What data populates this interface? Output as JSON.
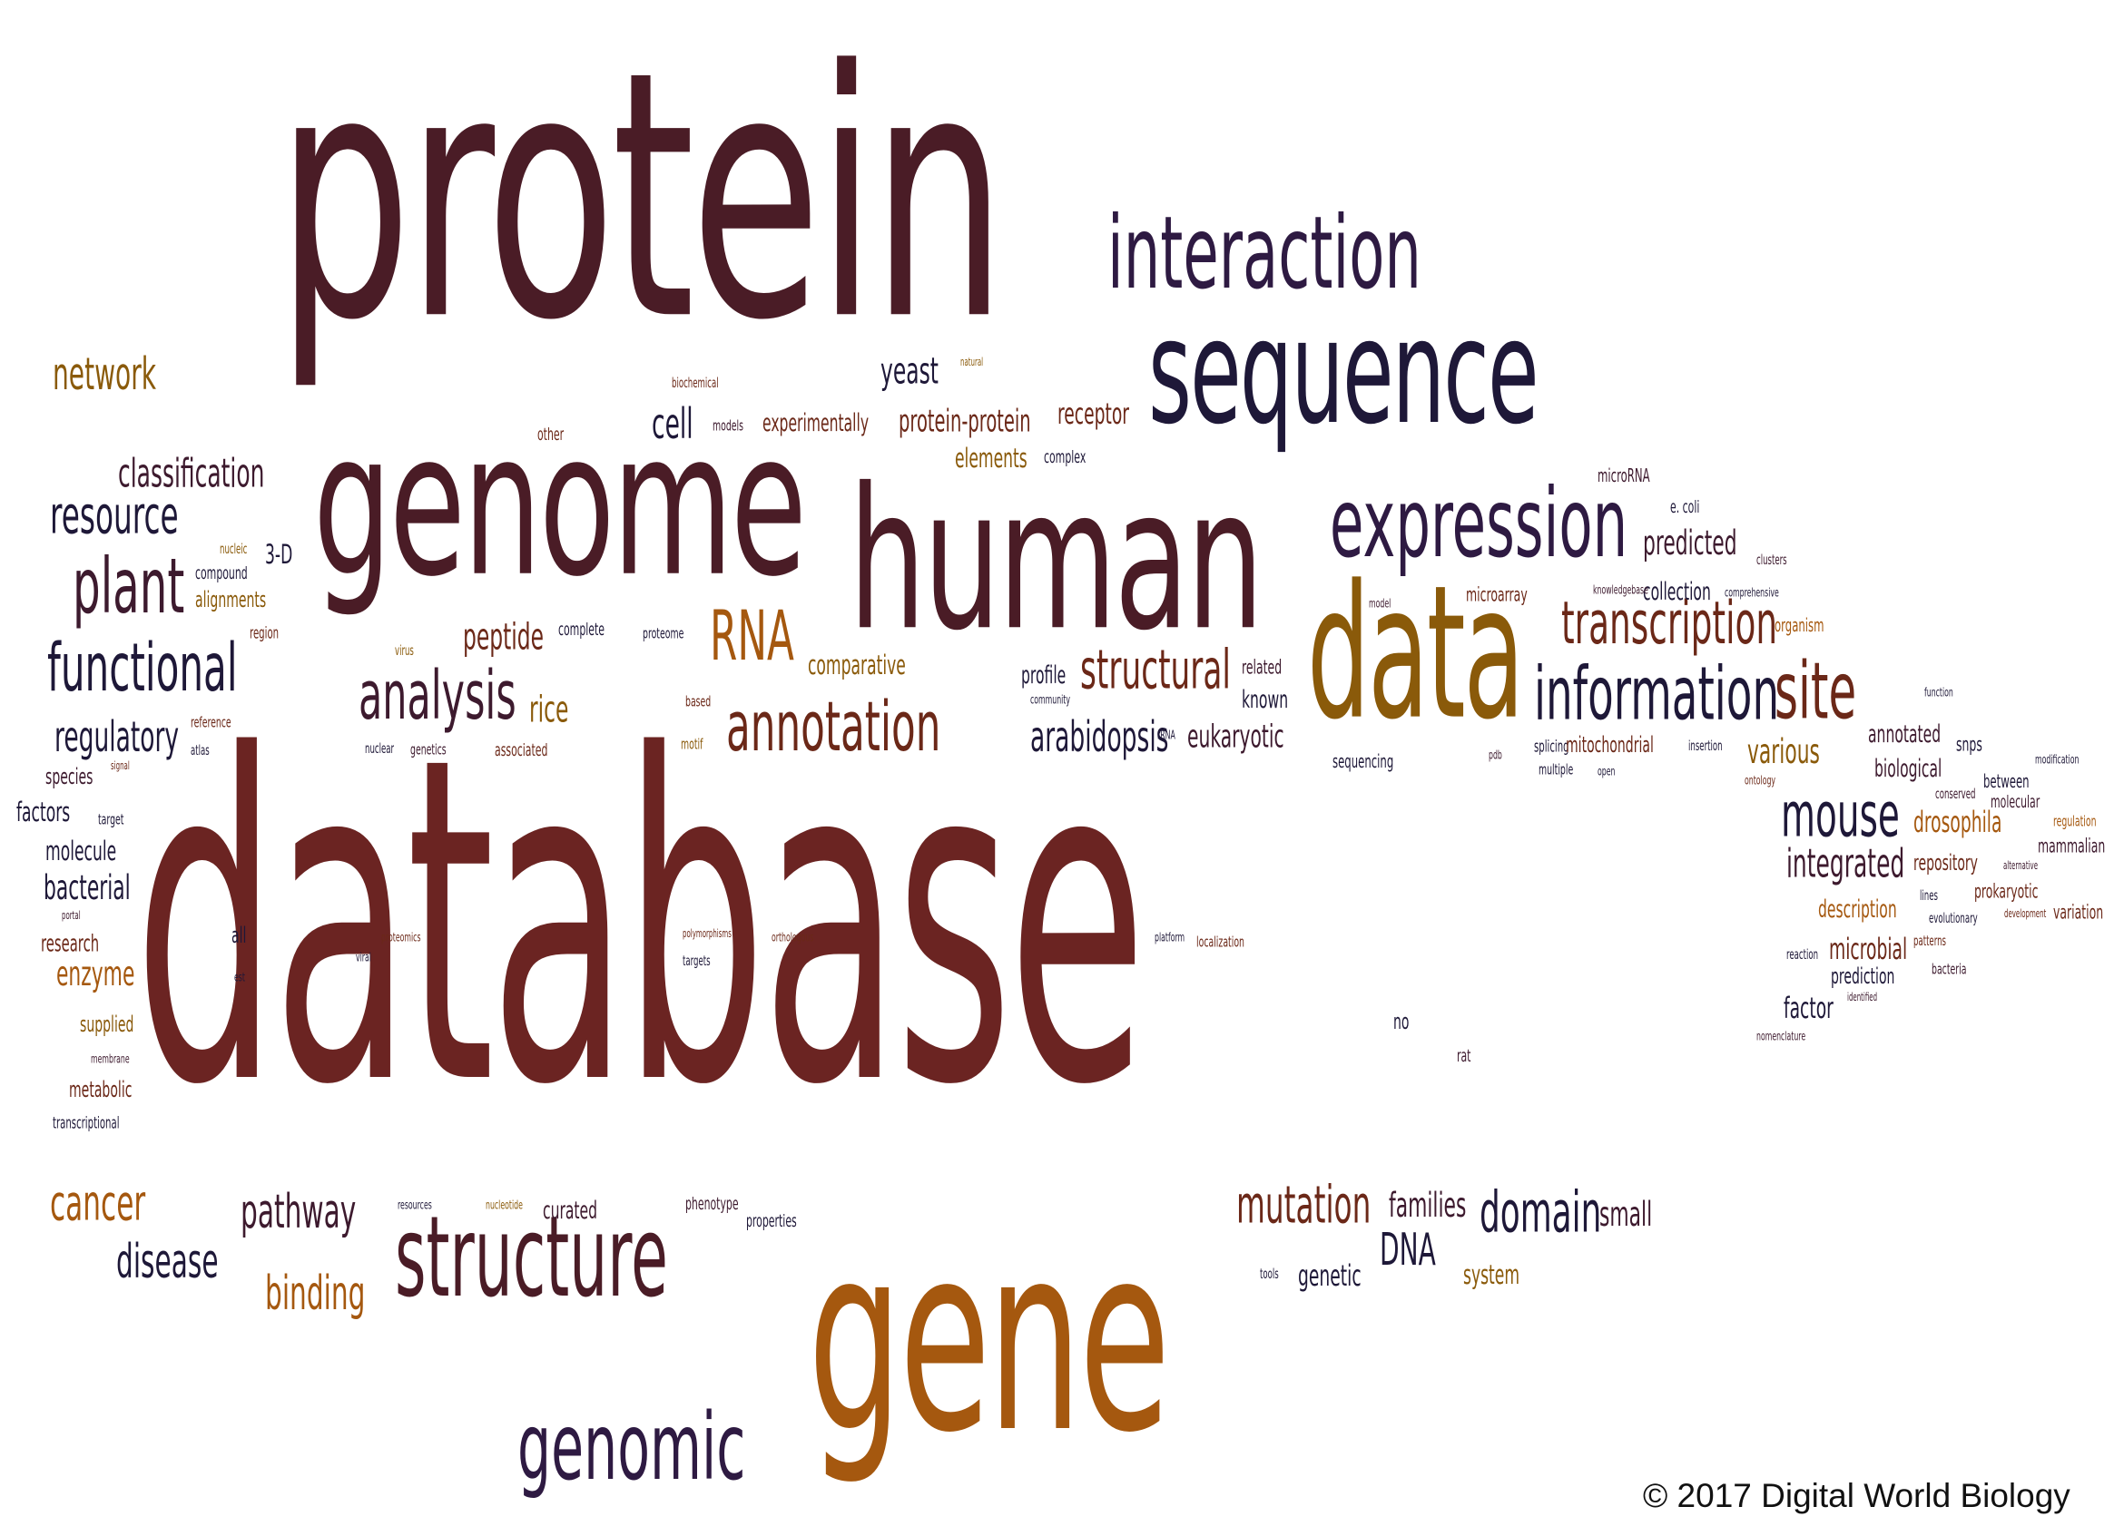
{
  "colors": {
    "maroon": "#4a1c26",
    "rust": "#6b2422",
    "navy": "#1e1838",
    "purple": "#2e1a42",
    "brown": "#6b2818",
    "amber": "#8a5a0a",
    "orange": "#a5580f",
    "plum": "#3d1a2e"
  },
  "words": [
    "database",
    "protein",
    "gene",
    "genome",
    "human",
    "sequence",
    "interaction",
    "data",
    "expression",
    "structure",
    "genomic",
    "information",
    "site",
    "annotation",
    "analysis",
    "functional",
    "plant",
    "transcription",
    "mouse",
    "RNA",
    "structural",
    "mutation",
    "domain",
    "network",
    "resource",
    "classification",
    "regulatory",
    "cancer",
    "disease",
    "pathway",
    "binding",
    "arabidopsis",
    "integrated",
    "DNA",
    "yeast",
    "cell",
    "families",
    "predicted",
    "drosophila",
    "peptide",
    "eukaryotic",
    "receptor",
    "protein-protein",
    "small",
    "various",
    "bacterial",
    "enzyme",
    "molecule",
    "factors",
    "species",
    "3-D",
    "research",
    "supplied",
    "metabolic",
    "transcriptional",
    "membrane",
    "all",
    "est",
    "region",
    "alignments",
    "compound",
    "nucleic",
    "reference",
    "atlas",
    "target",
    "signal",
    "portal",
    "elements",
    "experimentally",
    "models",
    "biochemical",
    "other",
    "natural",
    "complex",
    "microRNA",
    "e. coli",
    "collection",
    "knowledgebase",
    "microarray",
    "model",
    "organism",
    "clusters",
    "comprehensive",
    "comparative",
    "virus",
    "complete",
    "proteome",
    "based",
    "motif",
    "nuclear",
    "genetics",
    "associated",
    "rice",
    "profile",
    "community",
    "related",
    "known",
    "rRNA",
    "sequencing",
    "pdb",
    "splicing",
    "mitochondrial",
    "insertion",
    "multiple",
    "open",
    "ontology",
    "annotated",
    "biological",
    "function",
    "snps",
    "conserved",
    "between",
    "molecular",
    "modification",
    "regulation",
    "mammalian",
    "alternative",
    "repository",
    "lines",
    "description",
    "prokaryotic",
    "evolutionary",
    "development",
    "variation",
    "microbial",
    "patterns",
    "reaction",
    "prediction",
    "bacteria",
    "factor",
    "identified",
    "nomenclature",
    "no",
    "rat",
    "proteomics",
    "viral",
    "polymorphisms",
    "targets",
    "orthologous",
    "platform",
    "localization",
    "resources",
    "nucleotide",
    "curated",
    "phenotype",
    "properties",
    "tools",
    "genetic",
    "system"
  ],
  "copyright": "© 2017 Digital World Biology"
}
